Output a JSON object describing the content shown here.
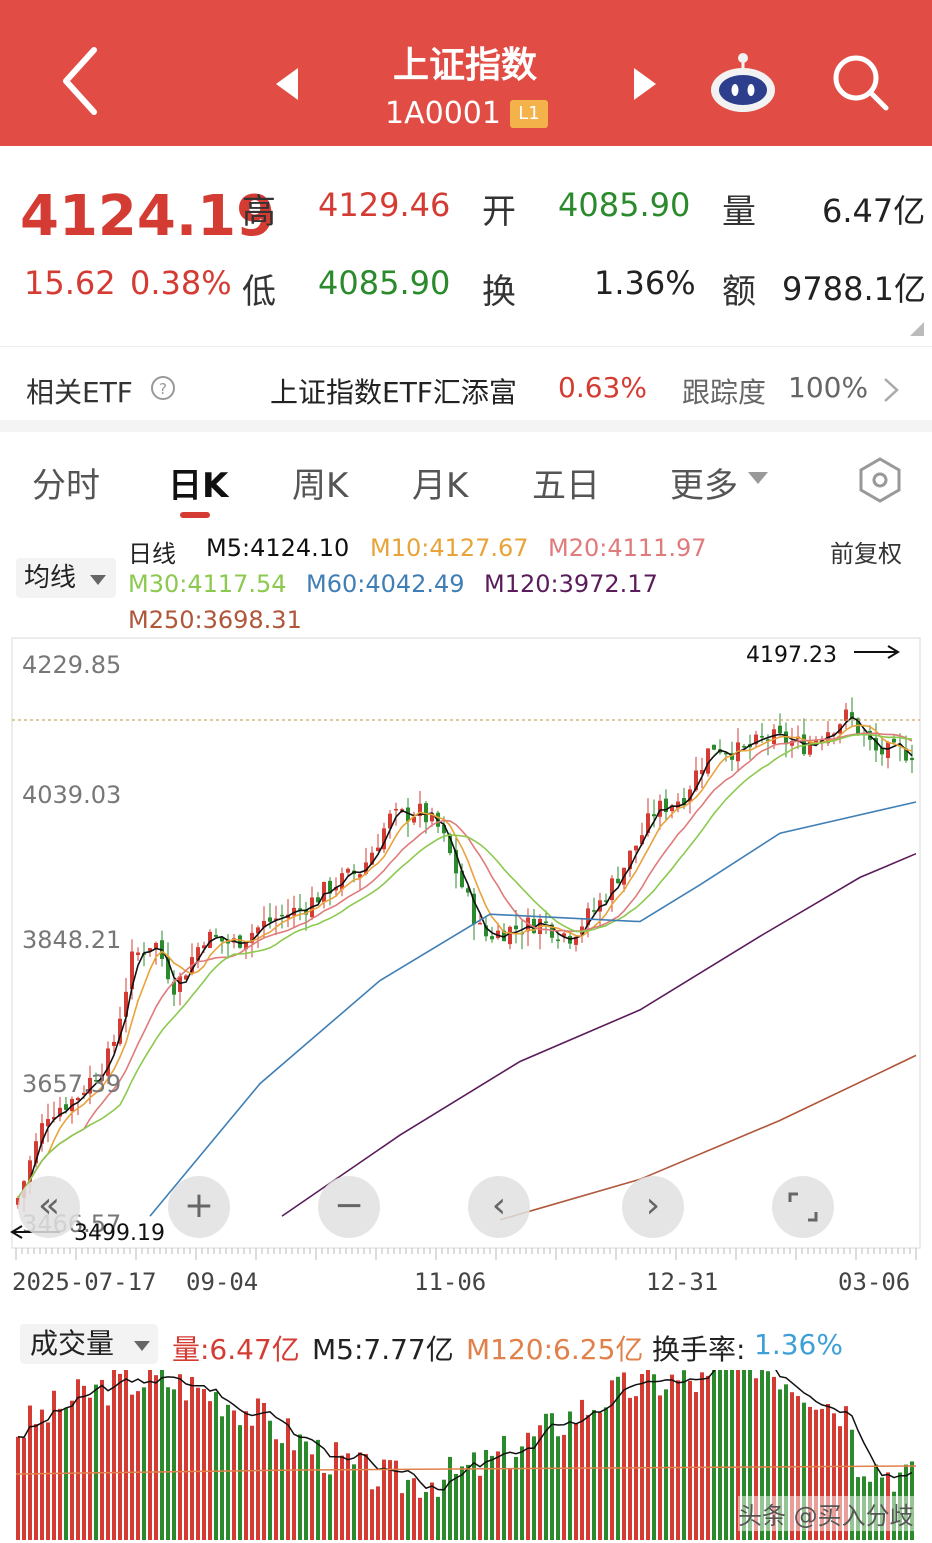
{
  "header": {
    "title": "上证指数",
    "code": "1A0001",
    "level_badge": "L1"
  },
  "quote": {
    "price": "4124.19",
    "change": "15.62",
    "change_pct": "0.38%",
    "high_label": "高",
    "high": "4129.46",
    "open_label": "开",
    "open": "4085.90",
    "volume_label": "量",
    "volume": "6.47亿",
    "low_label": "低",
    "low": "4085.90",
    "turnover_label": "换",
    "turnover": "1.36%",
    "amount_label": "额",
    "amount": "9788.1亿"
  },
  "etf": {
    "label": "相关ETF",
    "name": "上证指数ETF汇添富",
    "pct": "0.63%",
    "tracking_label": "跟踪度",
    "tracking": "100%"
  },
  "tabs": [
    "分时",
    "日K",
    "周K",
    "月K",
    "五日",
    "更多"
  ],
  "ma": {
    "dropdown": "均线",
    "label": "日线",
    "m5": "M5:4124.10",
    "m10": "M10:4127.67",
    "m20": "M20:4111.97",
    "m30": "M30:4117.54",
    "m60": "M60:4042.49",
    "m120": "M120:3972.17",
    "m250": "M250:3698.31",
    "adjust": "前复权"
  },
  "colors": {
    "up": "#d43c33",
    "down": "#2b8a2b",
    "m5": "#111111",
    "m10": "#e8a33a",
    "m20": "#e07b7b",
    "m30": "#8cc94f",
    "m60": "#3f7fb5",
    "m120": "#5a1c5a",
    "m250": "#b0563a"
  },
  "chart_data": {
    "type": "candlestick",
    "y_ticks": [
      "4229.85",
      "4039.03",
      "3848.21",
      "3657.39",
      "3466.57"
    ],
    "ylim": [
      3466.57,
      4229.85
    ],
    "x_ticks": [
      "2025-07-17",
      "09-04",
      "11-06",
      "12-31",
      "03-06"
    ],
    "annotations": {
      "high": "4197.23",
      "low": "3499.19"
    },
    "ma_latest": {
      "M5": 4124.1,
      "M10": 4127.67,
      "M20": 4111.97,
      "M30": 4117.54,
      "M60": 4042.49,
      "M120": 3972.17,
      "M250": 3698.31
    }
  },
  "volume": {
    "dropdown": "成交量",
    "vol": "量:6.47亿",
    "m5": "M5:7.77亿",
    "m120": "M120:6.25亿",
    "turnover_label": "换手率:",
    "turnover": "1.36%"
  },
  "watermark": "头条 @买入分歧"
}
